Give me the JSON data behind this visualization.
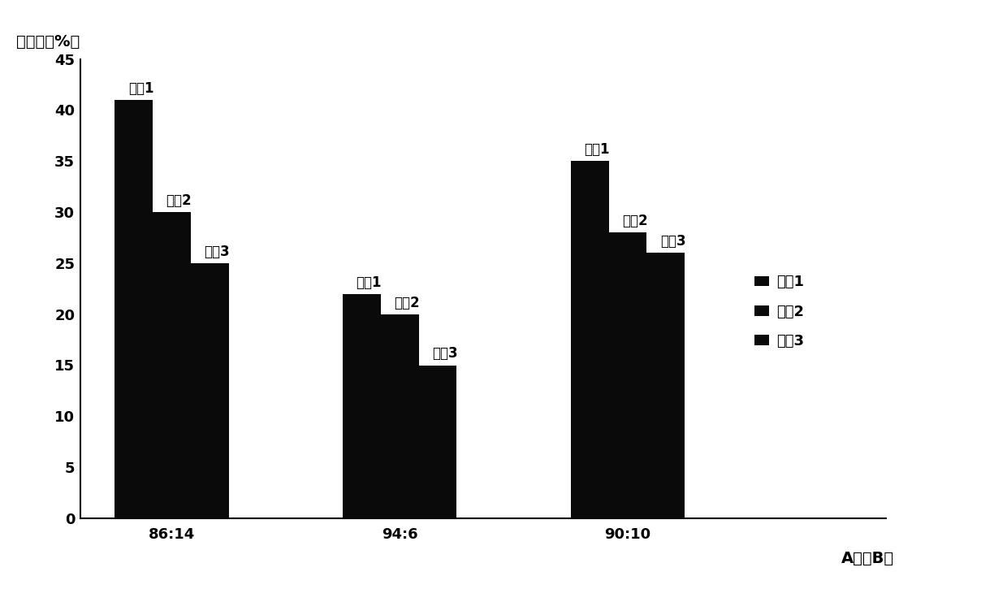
{
  "categories": [
    "86:14",
    "94:6",
    "90:10"
  ],
  "series": [
    {
      "name": "系列1",
      "values": [
        41,
        22,
        35
      ],
      "color": "#0a0a0a"
    },
    {
      "name": "系列2",
      "values": [
        30,
        20,
        28
      ],
      "color": "#0a0a0a"
    },
    {
      "name": "系列3",
      "values": [
        25,
        15,
        26
      ],
      "color": "#0a0a0a"
    }
  ],
  "ylabel": "存活率（%）",
  "xlabel": "A相：B相",
  "ylim": [
    0,
    45
  ],
  "yticks": [
    0,
    5,
    10,
    15,
    20,
    25,
    30,
    35,
    40,
    45
  ],
  "bar_width": 0.25,
  "background_color": "#ffffff",
  "label_fontsize": 14,
  "tick_fontsize": 13,
  "legend_fontsize": 13,
  "annotation_fontsize": 12
}
